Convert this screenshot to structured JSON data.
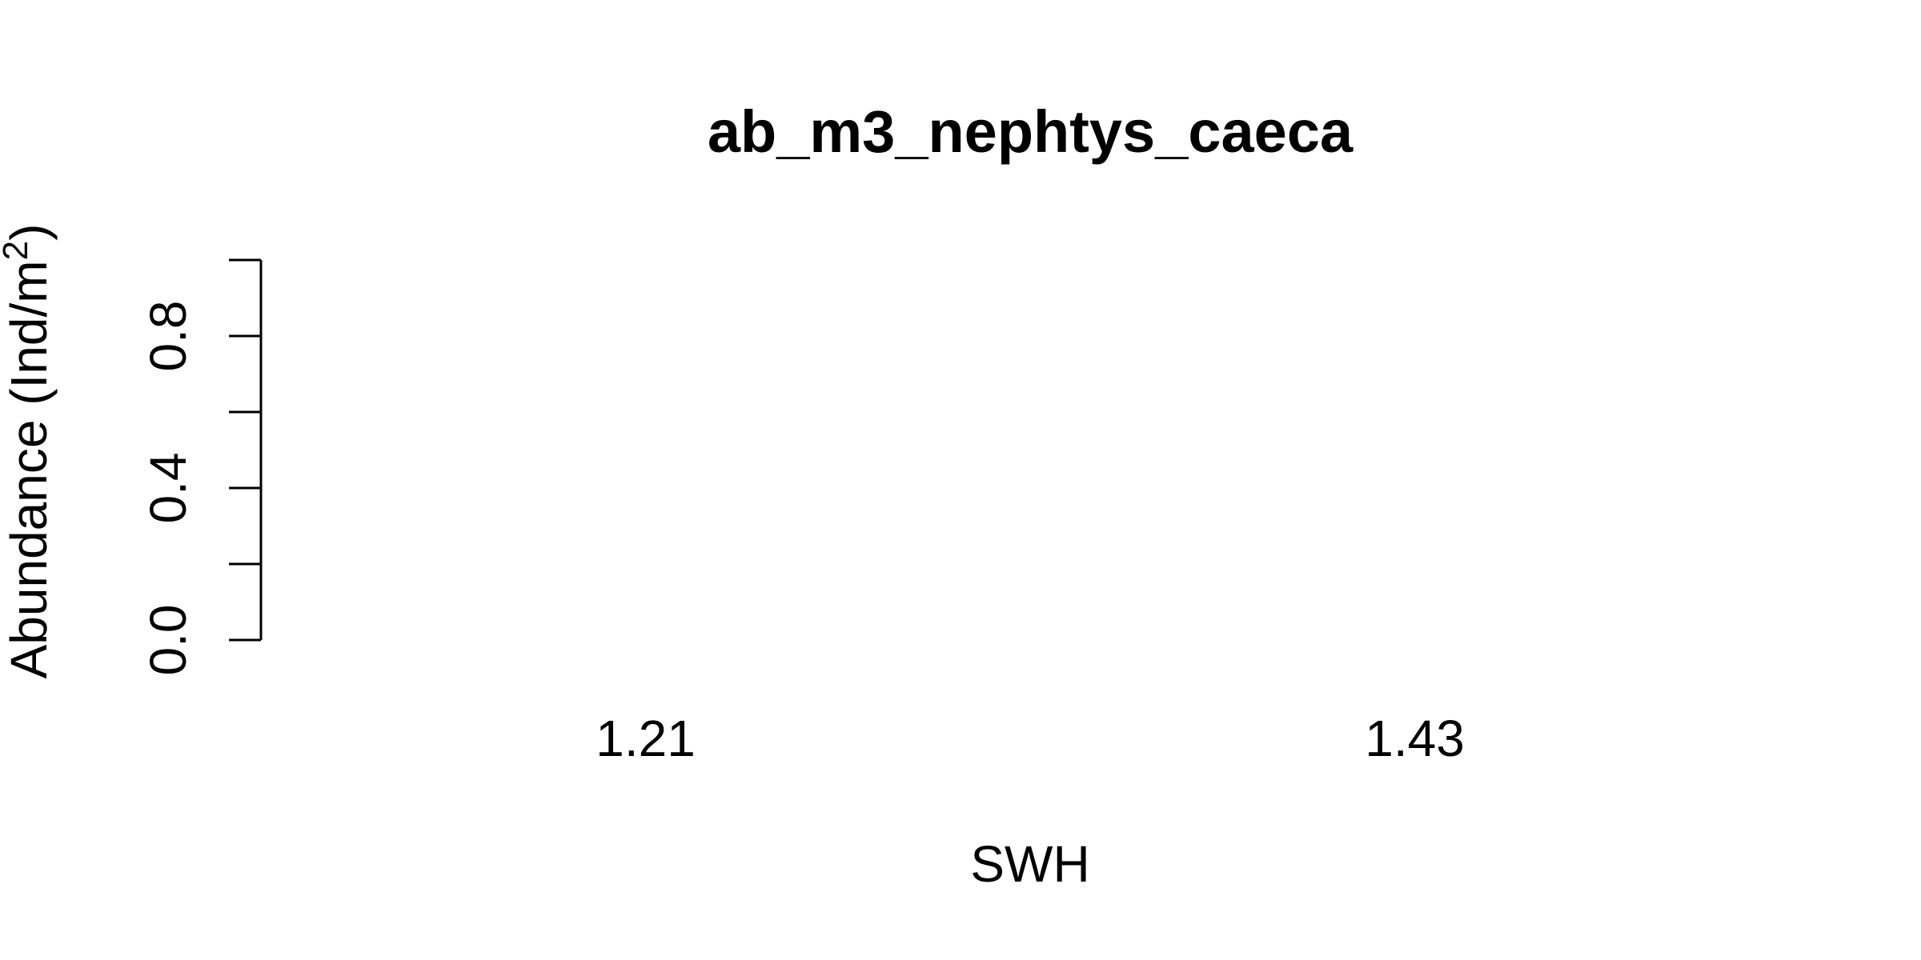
{
  "chart_data": {
    "type": "bar",
    "title": "ab_m3_nephtys_caeca",
    "xlabel": "SWH",
    "ylabel_main": "Abundance (Ind/m",
    "ylabel_superscript": "2",
    "ylabel_close": ")",
    "categories": [
      "1.21",
      "1.43"
    ],
    "values": [
      0,
      0
    ],
    "ylim": [
      0,
      1
    ],
    "y_ticks": [
      0.0,
      0.2,
      0.4,
      0.6,
      0.8,
      1.0
    ],
    "y_tick_labels": [
      "0.0",
      "",
      "0.4",
      "",
      "0.8",
      ""
    ],
    "grid": false,
    "legend": "none",
    "colors": {
      "foreground": "#000000",
      "background": "#ffffff"
    }
  }
}
